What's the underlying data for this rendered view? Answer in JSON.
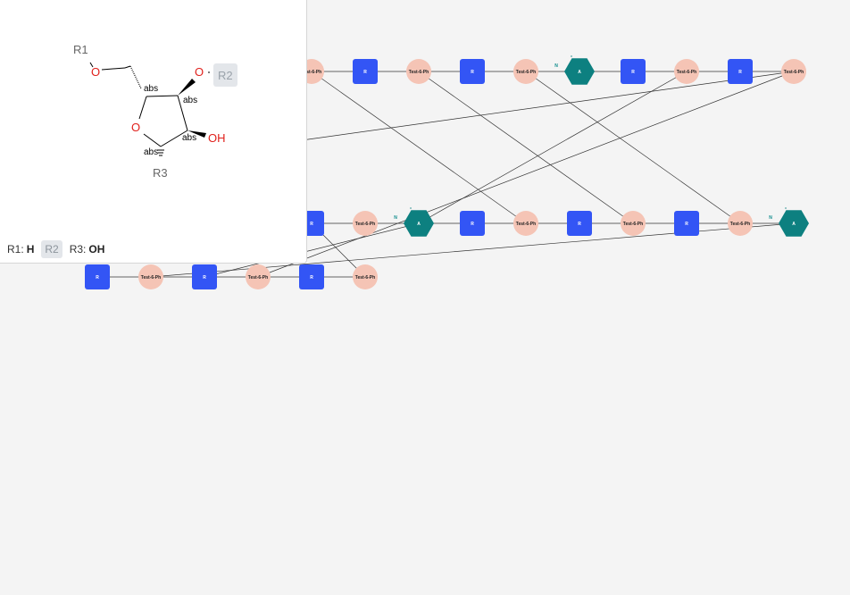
{
  "canvas": {
    "node_labels": {
      "monomer": "Test-6-Ph",
      "r_group": "R",
      "attachment": "A",
      "attachment_side": "N"
    }
  },
  "monomer_card": {
    "atoms": {
      "r1": "R1",
      "r2": "R2",
      "r3": "R3",
      "o": "O",
      "oh": "OH",
      "abs": "abs"
    },
    "legend": [
      {
        "name": "R1:",
        "value": "H"
      },
      {
        "name": "R2",
        "value": ""
      },
      {
        "name": "R3:",
        "value": "OH"
      }
    ]
  },
  "colors": {
    "r_node": "#3355f5",
    "monomer_node": "#f5c4b5",
    "attachment_node": "#0d8080",
    "oxygen": "#e0201b",
    "background": "#f4f4f4"
  }
}
